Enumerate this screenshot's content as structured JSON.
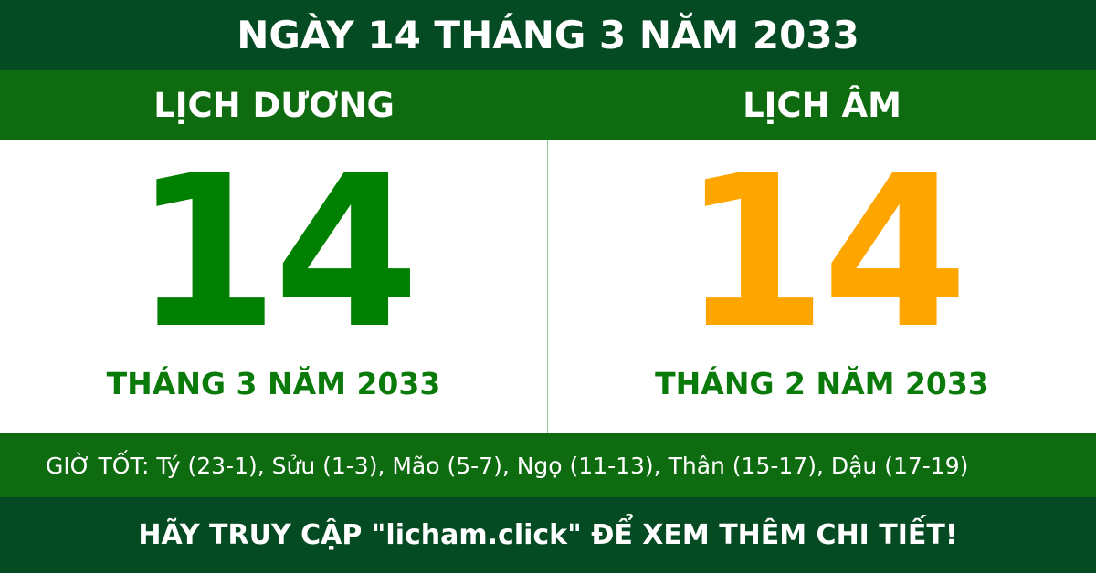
{
  "header": {
    "title": "NGÀY 14 THÁNG 3 NĂM 2033"
  },
  "solar": {
    "label": "LỊCH DƯƠNG",
    "day": "14",
    "month_year": "THÁNG 3 NĂM 2033",
    "color": "#008000"
  },
  "lunar": {
    "label": "LỊCH ÂM",
    "day": "14",
    "month_year": "THÁNG 2 NĂM 2033",
    "color": "#ffa500"
  },
  "good_hours": "GIỜ TỐT: Tý (23-1), Sửu (1-3), Mão (5-7), Ngọ (11-13), Thân (15-17), Dậu (17-19)",
  "footer": {
    "text": "HÃY TRUY CẬP \"licham.click\" ĐỂ XEM THÊM CHI TIẾT!"
  }
}
